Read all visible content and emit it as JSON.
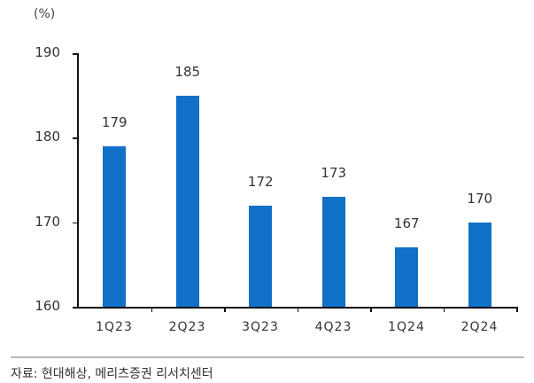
{
  "chart_data": {
    "type": "bar",
    "title": "",
    "unit_label": "(%)",
    "xlabel": "",
    "ylabel": "(%)",
    "categories": [
      "1Q23",
      "2Q23",
      "3Q23",
      "4Q23",
      "1Q24",
      "2Q24"
    ],
    "values": [
      179,
      185,
      172,
      173,
      167,
      170
    ],
    "data_labels": [
      "179",
      "185",
      "172",
      "173",
      "167",
      "170"
    ],
    "ylim": [
      160,
      190
    ],
    "yticks": [
      160,
      170,
      180,
      190
    ],
    "grid": false,
    "legend": null,
    "bar_color": "#1170c8"
  },
  "footer": {
    "source": "자료: 현대해상, 메리츠증권 리서치센터"
  }
}
